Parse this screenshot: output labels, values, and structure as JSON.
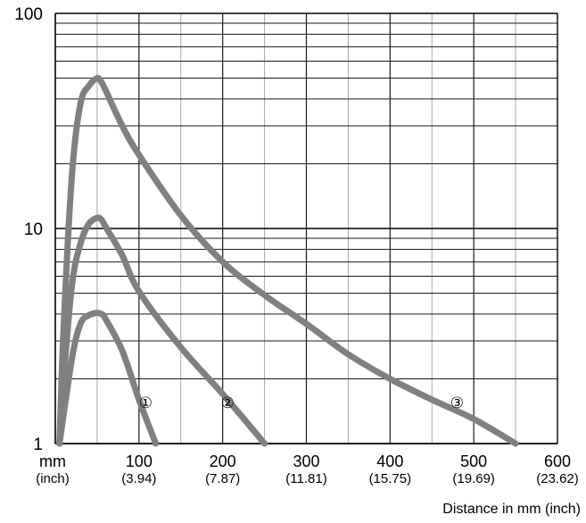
{
  "chart_data": {
    "type": "line",
    "title": "",
    "xlabel": "Distance in mm (inch)",
    "ylabel": "",
    "xlim": [
      0,
      600
    ],
    "ylim": [
      1,
      100
    ],
    "y_scale": "log",
    "grid": true,
    "x_unit_label": "mm",
    "x_unit_sub": "(inch)",
    "x_ticks": [
      {
        "mm": "100",
        "inch": "(3.94)"
      },
      {
        "mm": "200",
        "inch": "(7.87)"
      },
      {
        "mm": "300",
        "inch": "(11.81)"
      },
      {
        "mm": "400",
        "inch": "(15.75)"
      },
      {
        "mm": "500",
        "inch": "(19.69)"
      },
      {
        "mm": "600",
        "inch": "(23.62)"
      }
    ],
    "y_ticks": [
      "1",
      "10",
      "100"
    ],
    "curve_color": "#808080",
    "series": [
      {
        "label": "①",
        "x": [
          5,
          20,
          30,
          40,
          50,
          55,
          60,
          80,
          100,
          120
        ],
        "y": [
          1.0,
          2.5,
          3.6,
          3.95,
          4.05,
          4.0,
          3.8,
          2.7,
          1.6,
          1.0
        ]
      },
      {
        "label": "②",
        "x": [
          5,
          10,
          20,
          30,
          40,
          50,
          55,
          60,
          80,
          100,
          150,
          200,
          250
        ],
        "y": [
          1.0,
          2.0,
          5.5,
          8.5,
          10.5,
          11.2,
          11.0,
          10.2,
          7.5,
          5.1,
          2.8,
          1.7,
          1.0
        ]
      },
      {
        "label": "③",
        "x": [
          5,
          10,
          20,
          30,
          40,
          50,
          55,
          60,
          80,
          100,
          150,
          200,
          250,
          300,
          350,
          400,
          450,
          500,
          550
        ],
        "y": [
          1.0,
          3.5,
          18.0,
          38.0,
          46.0,
          50.0,
          48.0,
          44.0,
          30.0,
          22.0,
          11.5,
          7.0,
          4.9,
          3.6,
          2.6,
          2.0,
          1.6,
          1.3,
          1.0
        ]
      }
    ],
    "callouts": [
      {
        "text": "①",
        "x": 108,
        "y": 1.55
      },
      {
        "text": "②",
        "x": 206,
        "y": 1.55
      },
      {
        "text": "③",
        "x": 480,
        "y": 1.55
      }
    ]
  }
}
